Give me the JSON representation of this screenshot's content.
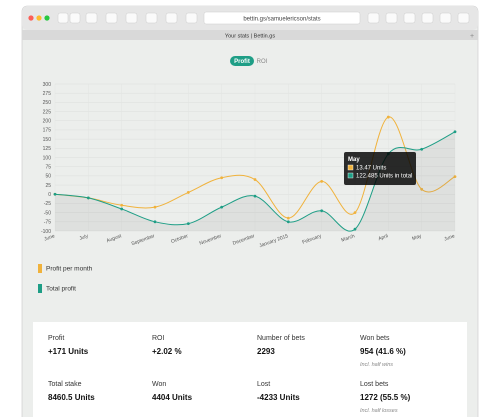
{
  "browser": {
    "url": "bettin.gs/samuelericson/stats",
    "tab_title": "Your stats | Bettin.gs"
  },
  "toggle": {
    "active": "Profit",
    "inactive": "ROI"
  },
  "chart_data": {
    "type": "line",
    "categories": [
      "June",
      "July",
      "August",
      "September",
      "October",
      "November",
      "December",
      "January 2015",
      "February",
      "March",
      "April",
      "May",
      "June"
    ],
    "series": [
      {
        "name": "Profit per month",
        "color": "#f0b23c",
        "values": [
          0,
          -10,
          -30,
          -35,
          5,
          45,
          40,
          -65,
          35,
          -50,
          210,
          13.47,
          48
        ]
      },
      {
        "name": "Total profit",
        "color": "#1e9e86",
        "values": [
          0,
          -10,
          -40,
          -75,
          -80,
          -35,
          -5,
          -75,
          -45,
          -95,
          110,
          122.485,
          170
        ]
      }
    ],
    "ylim": [
      -100,
      300
    ],
    "yticks": [
      -100,
      -75,
      -50,
      -25,
      0,
      25,
      50,
      75,
      100,
      125,
      150,
      175,
      200,
      225,
      250,
      275,
      300
    ],
    "grid": true,
    "tooltip": {
      "title": "May",
      "lines": [
        "13.47 Units",
        "122.485 Units in total"
      ]
    }
  },
  "stats": [
    {
      "label": "Profit",
      "value": "+171 Units"
    },
    {
      "label": "ROI",
      "value": "+2.02 %"
    },
    {
      "label": "Number of bets",
      "value": "2293"
    },
    {
      "label": "Won bets",
      "value": "954 (41.6 %)",
      "note": "Incl. half wins"
    },
    {
      "label": "Total stake",
      "value": "8460.5 Units"
    },
    {
      "label": "Won",
      "value": "4404 Units"
    },
    {
      "label": "Lost",
      "value": "-4233 Units"
    },
    {
      "label": "Lost bets",
      "value": "1272 (55.5 %)",
      "note": "Incl. half losses"
    }
  ]
}
